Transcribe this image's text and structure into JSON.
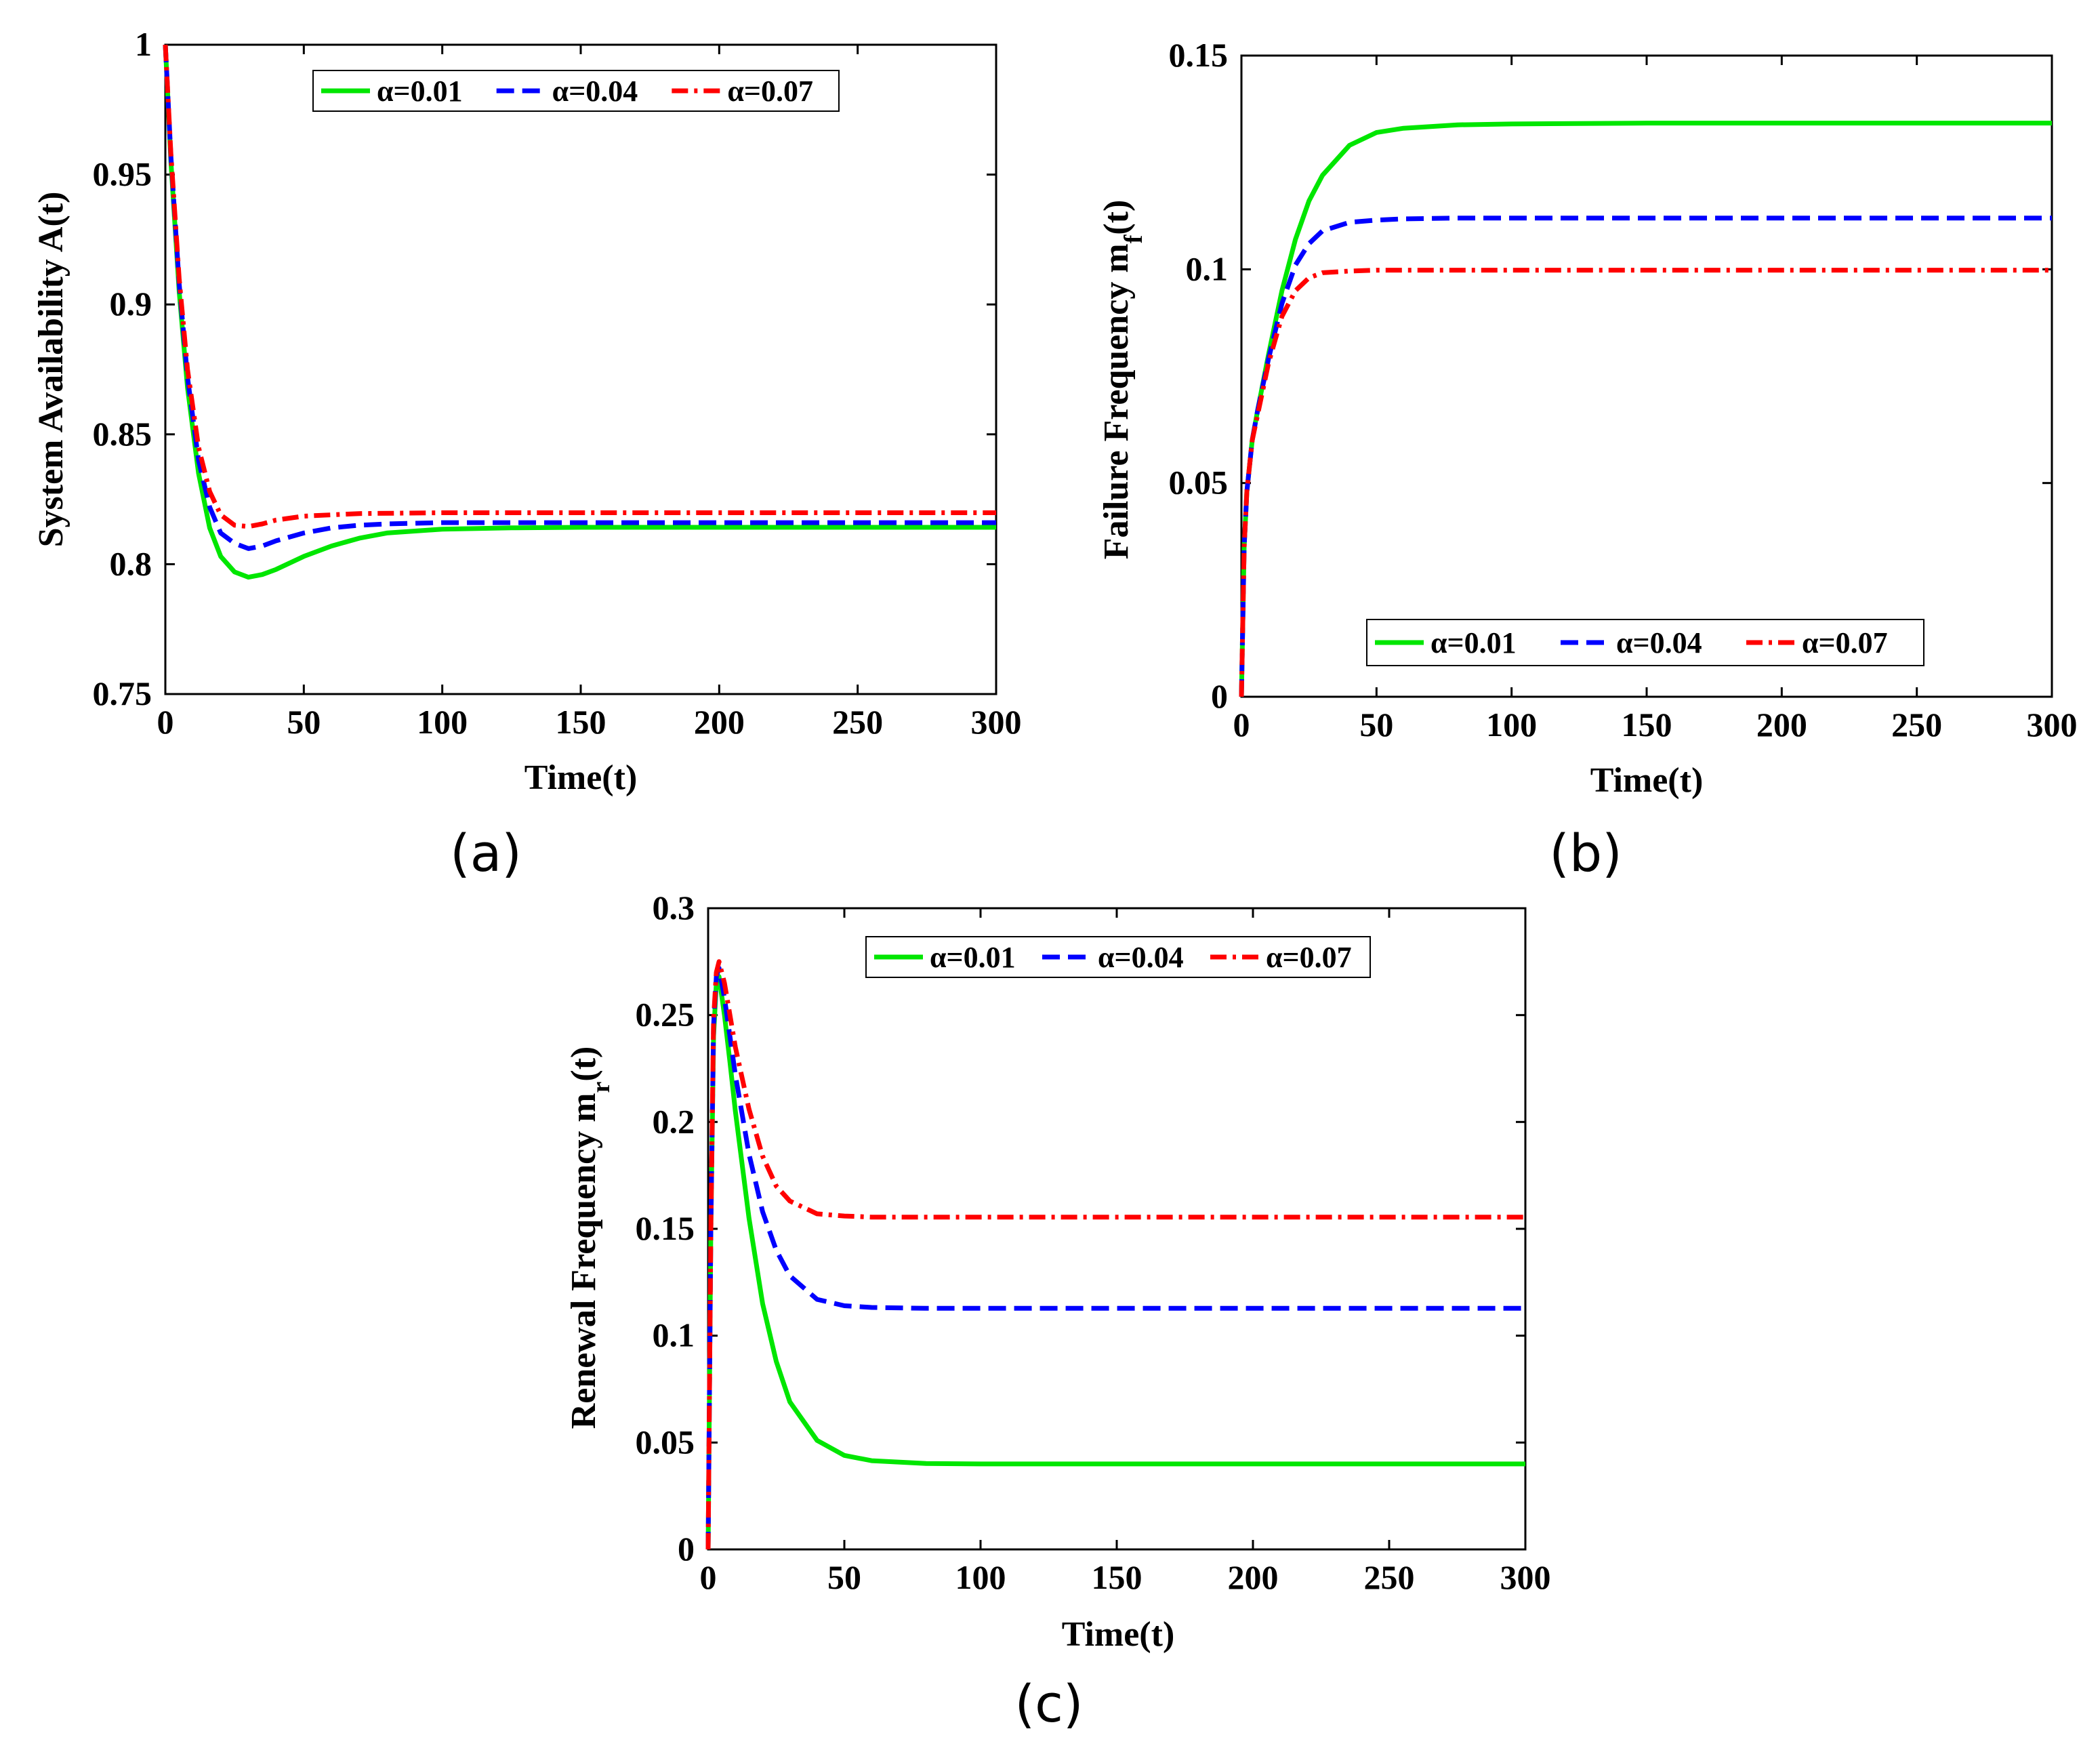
{
  "chart_data": [
    {
      "id": "a",
      "type": "line",
      "panel_label": "(a)",
      "xlabel": "Time(t)",
      "ylabel": "System Availability A(t)",
      "xlim": [
        0,
        300
      ],
      "ylim": [
        0.75,
        1
      ],
      "xticks": [
        "0",
        "50",
        "100",
        "150",
        "200",
        "250",
        "300"
      ],
      "yticks": [
        "0.75",
        "0.8",
        "0.85",
        "0.9",
        "0.95",
        "1"
      ],
      "legend_position": "top",
      "series": [
        {
          "name": "α=0.01",
          "color": "#00e600",
          "dash": "solid",
          "x": [
            0,
            2,
            5,
            8,
            12,
            16,
            20,
            25,
            30,
            35,
            40,
            50,
            60,
            70,
            80,
            100,
            125,
            150,
            200,
            250,
            300
          ],
          "y": [
            1.0,
            0.955,
            0.905,
            0.868,
            0.835,
            0.814,
            0.803,
            0.797,
            0.795,
            0.796,
            0.798,
            0.803,
            0.807,
            0.81,
            0.812,
            0.8135,
            0.814,
            0.8142,
            0.8142,
            0.8142,
            0.8142
          ]
        },
        {
          "name": "α=0.04",
          "color": "#0000ff",
          "dash": "dashed",
          "x": [
            0,
            2,
            5,
            8,
            12,
            16,
            20,
            25,
            30,
            35,
            40,
            50,
            60,
            70,
            80,
            100,
            150,
            200,
            250,
            300
          ],
          "y": [
            1.0,
            0.957,
            0.908,
            0.872,
            0.84,
            0.822,
            0.812,
            0.808,
            0.806,
            0.807,
            0.809,
            0.812,
            0.814,
            0.815,
            0.8155,
            0.816,
            0.816,
            0.816,
            0.816,
            0.816
          ]
        },
        {
          "name": "α=0.07",
          "color": "#ff0000",
          "dash": "dashdot",
          "x": [
            0,
            2,
            5,
            8,
            12,
            16,
            20,
            25,
            30,
            35,
            40,
            50,
            60,
            70,
            100,
            150,
            200,
            250,
            300
          ],
          "y": [
            1.0,
            0.958,
            0.91,
            0.875,
            0.845,
            0.828,
            0.819,
            0.815,
            0.8145,
            0.8155,
            0.817,
            0.8185,
            0.819,
            0.8195,
            0.8198,
            0.8198,
            0.8198,
            0.8198,
            0.8198
          ]
        }
      ]
    },
    {
      "id": "b",
      "type": "line",
      "panel_label": "(b)",
      "xlabel": "Time(t)",
      "ylabel": "Failure Frequency m",
      "ylabel_sub": "f",
      "ylabel_suffix": "(t)",
      "xlim": [
        0,
        300
      ],
      "ylim": [
        0,
        0.15
      ],
      "xticks": [
        "0",
        "50",
        "100",
        "150",
        "200",
        "250",
        "300"
      ],
      "yticks": [
        "0",
        "0.05",
        "0.1",
        "0.15"
      ],
      "legend_position": "bottom",
      "series": [
        {
          "name": "α=0.01",
          "color": "#00e600",
          "dash": "solid",
          "x": [
            0,
            1,
            2,
            4,
            6,
            10,
            15,
            20,
            25,
            30,
            40,
            50,
            60,
            80,
            100,
            150,
            200,
            250,
            300
          ],
          "y": [
            0,
            0.035,
            0.048,
            0.06,
            0.067,
            0.08,
            0.095,
            0.107,
            0.116,
            0.122,
            0.129,
            0.132,
            0.133,
            0.1338,
            0.134,
            0.1342,
            0.1342,
            0.1342,
            0.1342
          ]
        },
        {
          "name": "α=0.04",
          "color": "#0000ff",
          "dash": "dashed",
          "x": [
            0,
            1,
            2,
            4,
            6,
            10,
            15,
            20,
            25,
            30,
            40,
            50,
            60,
            80,
            100,
            150,
            200,
            250,
            300
          ],
          "y": [
            0,
            0.035,
            0.048,
            0.06,
            0.067,
            0.079,
            0.092,
            0.101,
            0.106,
            0.109,
            0.111,
            0.1115,
            0.1118,
            0.112,
            0.112,
            0.112,
            0.112,
            0.112,
            0.112
          ]
        },
        {
          "name": "α=0.07",
          "color": "#ff0000",
          "dash": "dashdot",
          "x": [
            0,
            1,
            2,
            4,
            6,
            10,
            15,
            20,
            25,
            30,
            40,
            50,
            60,
            80,
            100,
            150,
            200,
            250,
            300
          ],
          "y": [
            0,
            0.035,
            0.048,
            0.06,
            0.066,
            0.078,
            0.089,
            0.095,
            0.098,
            0.0992,
            0.0996,
            0.0998,
            0.0998,
            0.0998,
            0.0998,
            0.0998,
            0.0998,
            0.0998,
            0.0998
          ]
        }
      ]
    },
    {
      "id": "c",
      "type": "line",
      "panel_label": "(c)",
      "xlabel": "Time(t)",
      "ylabel": "Renewal Frequency m",
      "ylabel_sub": "r",
      "ylabel_suffix": "(t)",
      "xlim": [
        0,
        300
      ],
      "ylim": [
        0,
        0.3
      ],
      "xticks": [
        "0",
        "50",
        "100",
        "150",
        "200",
        "250",
        "300"
      ],
      "yticks": [
        "0",
        "0.05",
        "0.1",
        "0.15",
        "0.2",
        "0.25",
        "0.3"
      ],
      "legend_position": "top",
      "series": [
        {
          "name": "α=0.01",
          "color": "#00e600",
          "dash": "solid",
          "x": [
            0,
            1,
            2,
            3,
            4,
            6,
            8,
            10,
            15,
            20,
            25,
            30,
            40,
            50,
            60,
            80,
            100,
            150,
            200,
            250,
            300
          ],
          "y": [
            0,
            0.15,
            0.24,
            0.265,
            0.268,
            0.25,
            0.228,
            0.205,
            0.155,
            0.115,
            0.088,
            0.069,
            0.051,
            0.044,
            0.0415,
            0.0402,
            0.04,
            0.04,
            0.04,
            0.04,
            0.04
          ]
        },
        {
          "name": "α=0.04",
          "color": "#0000ff",
          "dash": "dashed",
          "x": [
            0,
            1,
            2,
            3,
            4,
            6,
            8,
            10,
            15,
            20,
            25,
            30,
            40,
            50,
            60,
            80,
            100,
            150,
            200,
            250,
            300
          ],
          "y": [
            0,
            0.15,
            0.245,
            0.268,
            0.272,
            0.258,
            0.24,
            0.222,
            0.185,
            0.158,
            0.14,
            0.128,
            0.117,
            0.114,
            0.1132,
            0.1128,
            0.1128,
            0.1128,
            0.1128,
            0.1128,
            0.1128
          ]
        },
        {
          "name": "α=0.07",
          "color": "#ff0000",
          "dash": "dashdot",
          "x": [
            0,
            1,
            2,
            3,
            4,
            6,
            8,
            10,
            15,
            20,
            25,
            30,
            40,
            50,
            60,
            80,
            100,
            150,
            200,
            250,
            300
          ],
          "y": [
            0,
            0.15,
            0.248,
            0.27,
            0.275,
            0.265,
            0.25,
            0.235,
            0.206,
            0.184,
            0.17,
            0.163,
            0.157,
            0.156,
            0.1555,
            0.1555,
            0.1555,
            0.1555,
            0.1555,
            0.1555,
            0.1555
          ]
        }
      ]
    }
  ]
}
